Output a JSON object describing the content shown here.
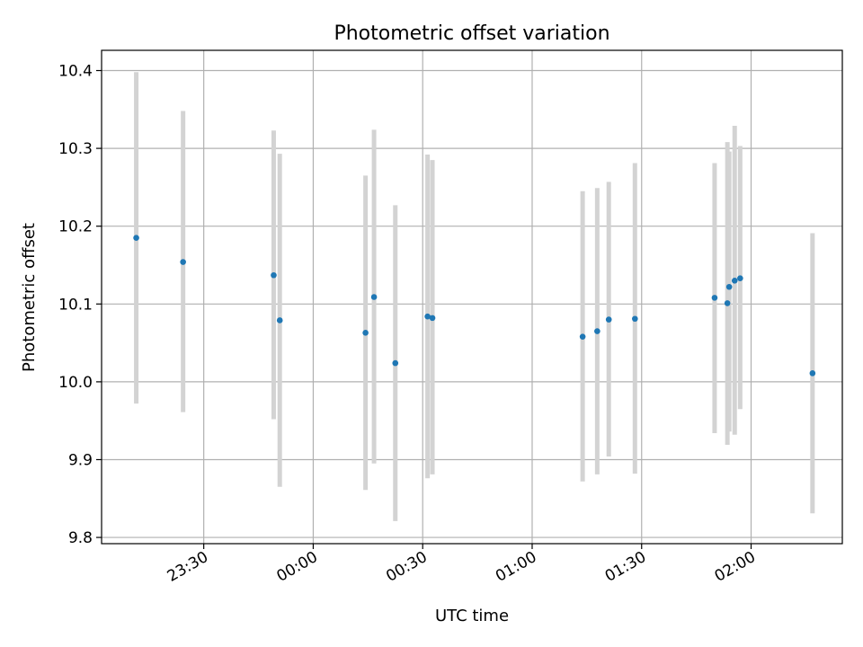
{
  "chart_data": {
    "type": "scatter",
    "title": "Photometric offset variation",
    "xlabel": "UTC time",
    "ylabel": "Photometric offset",
    "xlim": [
      "2023-01-01T23:02:00",
      "2023-01-02T02:25:00"
    ],
    "ylim": [
      9.792,
      10.426
    ],
    "grid": true,
    "colors": {
      "points": "#1f77b4",
      "error_bars": "#d3d3d3",
      "grid": "#b0b0b0"
    },
    "x_ticks": [
      {
        "label": "23:30",
        "value": "2023-01-01T23:30:00"
      },
      {
        "label": "00:00",
        "value": "2023-01-02T00:00:00"
      },
      {
        "label": "00:30",
        "value": "2023-01-02T00:30:00"
      },
      {
        "label": "01:00",
        "value": "2023-01-02T01:00:00"
      },
      {
        "label": "01:30",
        "value": "2023-01-02T01:30:00"
      },
      {
        "label": "02:00",
        "value": "2023-01-02T02:00:00"
      }
    ],
    "y_ticks": [
      {
        "label": "9.8",
        "value": 9.8
      },
      {
        "label": "9.9",
        "value": 9.9
      },
      {
        "label": "10.0",
        "value": 10.0
      },
      {
        "label": "10.1",
        "value": 10.1
      },
      {
        "label": "10.2",
        "value": 10.2
      },
      {
        "label": "10.3",
        "value": 10.3
      },
      {
        "label": "10.4",
        "value": 10.4
      }
    ],
    "points": [
      {
        "time": "2023-01-01T23:11:30",
        "y": 10.185,
        "y_low": 9.972,
        "y_high": 10.398
      },
      {
        "time": "2023-01-01T23:24:20",
        "y": 10.154,
        "y_low": 9.961,
        "y_high": 10.348
      },
      {
        "time": "2023-01-01T23:49:10",
        "y": 10.137,
        "y_low": 9.952,
        "y_high": 10.323
      },
      {
        "time": "2023-01-01T23:50:50",
        "y": 10.079,
        "y_low": 9.865,
        "y_high": 10.293
      },
      {
        "time": "2023-01-02T00:14:20",
        "y": 10.063,
        "y_low": 9.861,
        "y_high": 10.265
      },
      {
        "time": "2023-01-02T00:16:40",
        "y": 10.109,
        "y_low": 9.895,
        "y_high": 10.324
      },
      {
        "time": "2023-01-02T00:22:30",
        "y": 10.024,
        "y_low": 9.821,
        "y_high": 10.227
      },
      {
        "time": "2023-01-02T00:31:20",
        "y": 10.084,
        "y_low": 9.876,
        "y_high": 10.292
      },
      {
        "time": "2023-01-02T00:32:40",
        "y": 10.082,
        "y_low": 9.881,
        "y_high": 10.285
      },
      {
        "time": "2023-01-02T01:13:50",
        "y": 10.058,
        "y_low": 9.872,
        "y_high": 10.245
      },
      {
        "time": "2023-01-02T01:17:50",
        "y": 10.065,
        "y_low": 9.881,
        "y_high": 10.249
      },
      {
        "time": "2023-01-02T01:21:00",
        "y": 10.08,
        "y_low": 9.904,
        "y_high": 10.257
      },
      {
        "time": "2023-01-02T01:28:10",
        "y": 10.081,
        "y_low": 9.882,
        "y_high": 10.281
      },
      {
        "time": "2023-01-02T01:50:00",
        "y": 10.108,
        "y_low": 9.934,
        "y_high": 10.281
      },
      {
        "time": "2023-01-02T01:53:30",
        "y": 10.101,
        "y_low": 9.919,
        "y_high": 10.308
      },
      {
        "time": "2023-01-02T01:54:00",
        "y": 10.122,
        "y_low": 9.936,
        "y_high": 10.296
      },
      {
        "time": "2023-01-02T01:55:30",
        "y": 10.13,
        "y_low": 9.932,
        "y_high": 10.329
      },
      {
        "time": "2023-01-02T01:57:00",
        "y": 10.133,
        "y_low": 9.965,
        "y_high": 10.303
      },
      {
        "time": "2023-01-02T02:16:50",
        "y": 10.011,
        "y_low": 9.831,
        "y_high": 10.191
      }
    ]
  }
}
